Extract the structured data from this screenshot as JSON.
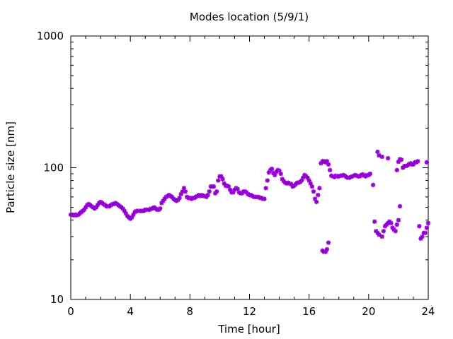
{
  "chart_data": {
    "type": "scatter",
    "title": "Modes location (5/9/1)",
    "xlabel": "Time [hour]",
    "ylabel": "Particle size [nm]",
    "xlim": [
      0,
      24
    ],
    "ylim": [
      10,
      1000
    ],
    "y_scale": "log",
    "x_ticks": [
      "0",
      "4",
      "8",
      "12",
      "16",
      "20",
      "24"
    ],
    "y_ticks": [
      "10",
      "100",
      "1000"
    ],
    "grid": false,
    "legend": "none",
    "marker_color": "#9400d3",
    "series": [
      {
        "points": [
          [
            0.0,
            44
          ],
          [
            0.1,
            44
          ],
          [
            0.2,
            43.5
          ],
          [
            0.3,
            44
          ],
          [
            0.4,
            43.5
          ],
          [
            0.5,
            44
          ],
          [
            0.6,
            45
          ],
          [
            0.7,
            46
          ],
          [
            0.8,
            47
          ],
          [
            0.9,
            48
          ],
          [
            1.0,
            50
          ],
          [
            1.1,
            52
          ],
          [
            1.2,
            53
          ],
          [
            1.3,
            52
          ],
          [
            1.4,
            51
          ],
          [
            1.5,
            50
          ],
          [
            1.6,
            49
          ],
          [
            1.7,
            50
          ],
          [
            1.8,
            52
          ],
          [
            1.9,
            54
          ],
          [
            2.0,
            55
          ],
          [
            2.1,
            54
          ],
          [
            2.2,
            53
          ],
          [
            2.3,
            52
          ],
          [
            2.4,
            51
          ],
          [
            2.5,
            51
          ],
          [
            2.6,
            51
          ],
          [
            2.7,
            52
          ],
          [
            2.8,
            53
          ],
          [
            2.9,
            53
          ],
          [
            3.0,
            54
          ],
          [
            3.1,
            53
          ],
          [
            3.2,
            52
          ],
          [
            3.3,
            51
          ],
          [
            3.4,
            50
          ],
          [
            3.5,
            49
          ],
          [
            3.6,
            47
          ],
          [
            3.7,
            45
          ],
          [
            3.8,
            43
          ],
          [
            3.9,
            42
          ],
          [
            4.0,
            41
          ],
          [
            4.1,
            42
          ],
          [
            4.2,
            44
          ],
          [
            4.3,
            46
          ],
          [
            4.4,
            47
          ],
          [
            4.5,
            47
          ],
          [
            4.6,
            47
          ],
          [
            4.7,
            47
          ],
          [
            4.8,
            47
          ],
          [
            4.9,
            47
          ],
          [
            5.0,
            48
          ],
          [
            5.1,
            48
          ],
          [
            5.2,
            48
          ],
          [
            5.3,
            48
          ],
          [
            5.4,
            49
          ],
          [
            5.5,
            49
          ],
          [
            5.6,
            50
          ],
          [
            5.7,
            49
          ],
          [
            5.8,
            48
          ],
          [
            5.9,
            48
          ],
          [
            6.0,
            49
          ],
          [
            6.1,
            54
          ],
          [
            6.2,
            56
          ],
          [
            6.3,
            58
          ],
          [
            6.4,
            60
          ],
          [
            6.5,
            61
          ],
          [
            6.6,
            62
          ],
          [
            6.7,
            61
          ],
          [
            6.8,
            60
          ],
          [
            6.9,
            58
          ],
          [
            7.0,
            57
          ],
          [
            7.1,
            56
          ],
          [
            7.2,
            57
          ],
          [
            7.3,
            59
          ],
          [
            7.4,
            63
          ],
          [
            7.5,
            66
          ],
          [
            7.6,
            70
          ],
          [
            7.7,
            66
          ],
          [
            7.8,
            60
          ],
          [
            7.9,
            59
          ],
          [
            8.0,
            59
          ],
          [
            8.1,
            58
          ],
          [
            8.2,
            59
          ],
          [
            8.3,
            59
          ],
          [
            8.4,
            60
          ],
          [
            8.5,
            61
          ],
          [
            8.6,
            62
          ],
          [
            8.7,
            61
          ],
          [
            8.8,
            62
          ],
          [
            8.9,
            61
          ],
          [
            9.0,
            61
          ],
          [
            9.1,
            60
          ],
          [
            9.2,
            62
          ],
          [
            9.3,
            66
          ],
          [
            9.4,
            72
          ],
          [
            9.5,
            72
          ],
          [
            9.6,
            72
          ],
          [
            9.7,
            64
          ],
          [
            9.8,
            66
          ],
          [
            9.9,
            80
          ],
          [
            10.0,
            86
          ],
          [
            10.1,
            86
          ],
          [
            10.2,
            82
          ],
          [
            10.3,
            76
          ],
          [
            10.4,
            73
          ],
          [
            10.5,
            73
          ],
          [
            10.6,
            72
          ],
          [
            10.7,
            68
          ],
          [
            10.8,
            65
          ],
          [
            10.9,
            65
          ],
          [
            11.0,
            68
          ],
          [
            11.1,
            70
          ],
          [
            11.2,
            69
          ],
          [
            11.3,
            65
          ],
          [
            11.4,
            64
          ],
          [
            11.5,
            64
          ],
          [
            11.6,
            66
          ],
          [
            11.7,
            66
          ],
          [
            11.8,
            65
          ],
          [
            11.9,
            63
          ],
          [
            12.0,
            62
          ],
          [
            12.1,
            62
          ],
          [
            12.2,
            61
          ],
          [
            12.3,
            60
          ],
          [
            12.4,
            60
          ],
          [
            12.5,
            60
          ],
          [
            12.6,
            60
          ],
          [
            12.7,
            59
          ],
          [
            12.8,
            59
          ],
          [
            12.9,
            58
          ],
          [
            13.0,
            58
          ],
          [
            13.1,
            70
          ],
          [
            13.2,
            80
          ],
          [
            13.3,
            92
          ],
          [
            13.4,
            96
          ],
          [
            13.5,
            98
          ],
          [
            13.6,
            91
          ],
          [
            13.7,
            88
          ],
          [
            13.8,
            93
          ],
          [
            13.9,
            96
          ],
          [
            14.0,
            95
          ],
          [
            14.1,
            90
          ],
          [
            14.2,
            82
          ],
          [
            14.3,
            79
          ],
          [
            14.4,
            77
          ],
          [
            14.5,
            76
          ],
          [
            14.6,
            77
          ],
          [
            14.7,
            76
          ],
          [
            14.8,
            75
          ],
          [
            14.9,
            72
          ],
          [
            15.0,
            73
          ],
          [
            15.1,
            75
          ],
          [
            15.2,
            77
          ],
          [
            15.3,
            77
          ],
          [
            15.4,
            78
          ],
          [
            15.5,
            80
          ],
          [
            15.6,
            84
          ],
          [
            15.7,
            88
          ],
          [
            15.8,
            86
          ],
          [
            15.9,
            84
          ],
          [
            16.0,
            80
          ],
          [
            16.1,
            76
          ],
          [
            16.2,
            72
          ],
          [
            16.3,
            66
          ],
          [
            16.4,
            58
          ],
          [
            16.5,
            55
          ],
          [
            16.6,
            62
          ],
          [
            16.7,
            70
          ],
          [
            16.8,
            108
          ],
          [
            16.9,
            112
          ],
          [
            17.0,
            112
          ],
          [
            17.1,
            110
          ],
          [
            17.2,
            112
          ],
          [
            17.3,
            106
          ],
          [
            17.4,
            96
          ],
          [
            17.5,
            87
          ],
          [
            17.6,
            86
          ],
          [
            17.7,
            85
          ],
          [
            17.8,
            87
          ],
          [
            17.9,
            86
          ],
          [
            18.0,
            86
          ],
          [
            18.1,
            87
          ],
          [
            18.2,
            87
          ],
          [
            18.3,
            88
          ],
          [
            18.4,
            87
          ],
          [
            18.5,
            85
          ],
          [
            18.6,
            84
          ],
          [
            18.7,
            84
          ],
          [
            18.8,
            85
          ],
          [
            18.9,
            86
          ],
          [
            19.0,
            87
          ],
          [
            19.1,
            88
          ],
          [
            19.2,
            87
          ],
          [
            19.3,
            86
          ],
          [
            19.4,
            86
          ],
          [
            19.5,
            88
          ],
          [
            19.6,
            89
          ],
          [
            19.7,
            87
          ],
          [
            19.8,
            86
          ],
          [
            19.9,
            88
          ],
          [
            20.0,
            88
          ],
          [
            20.1,
            90
          ],
          [
            20.3,
            74
          ],
          [
            20.6,
            132
          ],
          [
            20.7,
            124
          ],
          [
            20.9,
            121
          ],
          [
            21.3,
            118
          ],
          [
            21.9,
            96
          ],
          [
            22.0,
            111
          ],
          [
            22.1,
            116
          ],
          [
            22.2,
            115
          ],
          [
            22.3,
            100
          ],
          [
            22.4,
            103
          ],
          [
            22.5,
            103
          ],
          [
            22.6,
            104
          ],
          [
            22.7,
            106
          ],
          [
            22.8,
            108
          ],
          [
            22.9,
            106
          ],
          [
            23.0,
            106
          ],
          [
            23.1,
            110
          ],
          [
            23.2,
            110
          ],
          [
            23.3,
            112
          ],
          [
            23.9,
            110
          ],
          [
            16.9,
            23.5
          ],
          [
            17.0,
            23
          ],
          [
            17.1,
            23
          ],
          [
            17.2,
            24
          ],
          [
            17.3,
            27
          ],
          [
            20.4,
            39
          ],
          [
            20.5,
            33
          ],
          [
            20.6,
            32
          ],
          [
            20.7,
            31
          ],
          [
            20.9,
            30
          ],
          [
            21.0,
            33
          ],
          [
            21.1,
            36
          ],
          [
            21.2,
            37
          ],
          [
            21.3,
            38
          ],
          [
            21.4,
            39
          ],
          [
            21.5,
            38
          ],
          [
            21.6,
            35
          ],
          [
            21.7,
            34
          ],
          [
            21.8,
            33
          ],
          [
            21.9,
            37
          ],
          [
            22.0,
            40
          ],
          [
            22.1,
            51
          ],
          [
            23.4,
            36
          ],
          [
            23.5,
            29
          ],
          [
            23.6,
            30
          ],
          [
            23.7,
            32
          ],
          [
            23.8,
            32
          ],
          [
            23.9,
            35
          ],
          [
            24.0,
            38
          ]
        ]
      }
    ]
  }
}
